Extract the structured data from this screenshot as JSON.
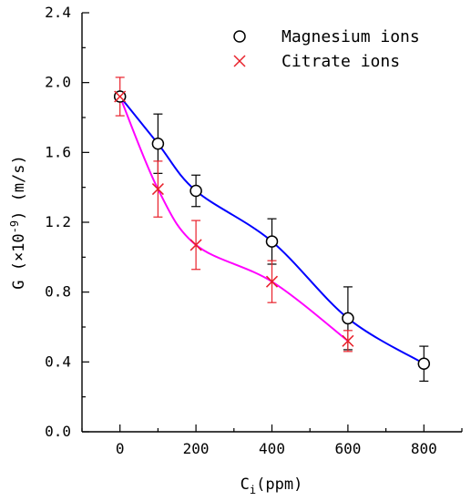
{
  "chart_data": {
    "type": "scatter",
    "xlabel_base": "C",
    "xlabel_sub": "i",
    "xlabel_unit": "(ppm)",
    "ylabel_prefix": "G (×10",
    "ylabel_sup": "-9",
    "ylabel_suffix": ") (m/s)",
    "xlim": [
      -100,
      900
    ],
    "ylim": [
      0.0,
      2.4
    ],
    "xticks": [
      0,
      200,
      400,
      600,
      800
    ],
    "xtick_labels": [
      "0",
      "200",
      "400",
      "600",
      "800"
    ],
    "yticks": [
      0.0,
      0.4,
      0.8,
      1.2,
      1.6,
      2.0,
      2.4
    ],
    "ytick_labels": [
      "0.0",
      "0.4",
      "0.8",
      "1.2",
      "1.6",
      "2.0",
      "2.4"
    ],
    "legend_position": "top-right",
    "series": [
      {
        "name": "Magnesium ions",
        "marker": "open-circle",
        "marker_color": "#000000",
        "line_color": "#0000ff",
        "x": [
          0,
          100,
          200,
          400,
          600,
          800
        ],
        "y": [
          1.92,
          1.65,
          1.38,
          1.09,
          0.65,
          0.39
        ],
        "err": [
          0.0,
          0.17,
          0.09,
          0.13,
          0.18,
          0.1
        ]
      },
      {
        "name": "Citrate ions",
        "marker": "x",
        "marker_color": "#e8202a",
        "line_color": "#ff00ff",
        "x": [
          0,
          100,
          200,
          400,
          600
        ],
        "y": [
          1.92,
          1.39,
          1.07,
          0.86,
          0.52
        ],
        "err": [
          0.11,
          0.16,
          0.14,
          0.12,
          0.06
        ]
      }
    ]
  }
}
